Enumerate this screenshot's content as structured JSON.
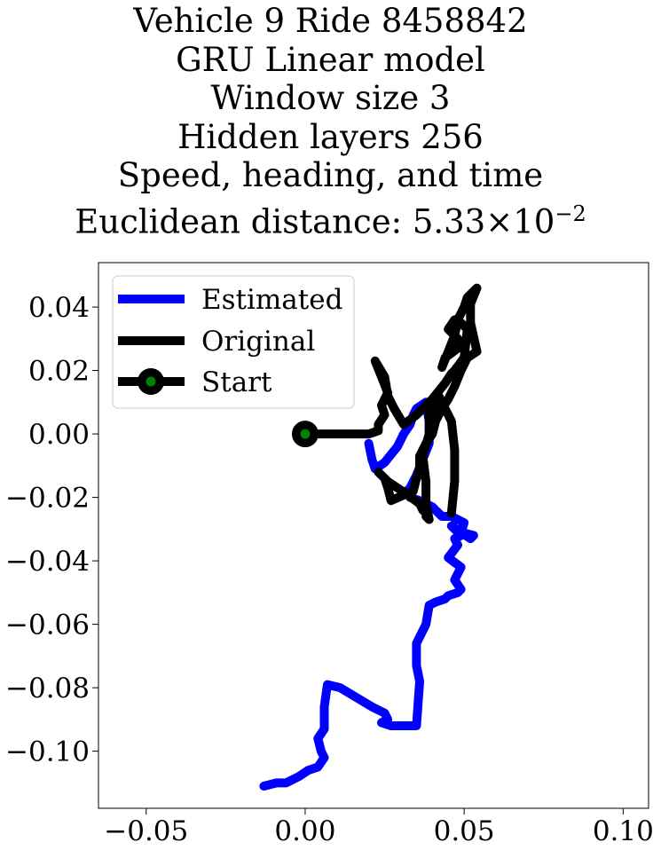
{
  "chart_data": {
    "type": "line",
    "title_lines": [
      "Vehicle 9 Ride 8458842",
      "GRU Linear model",
      "Window size 3",
      "Hidden layers 256",
      "Speed, heading, and time"
    ],
    "title_distance_label": "Euclidean distance: ",
    "title_distance_mantissa": "5.33",
    "title_distance_times": "×",
    "title_distance_base": "10",
    "title_distance_exponent": "−2",
    "xlim": [
      -0.065,
      0.108
    ],
    "ylim": [
      -0.118,
      0.054
    ],
    "xticks": [
      -0.05,
      0.0,
      0.05,
      0.1
    ],
    "xtick_labels": [
      "−0.05",
      "0.00",
      "0.05",
      "0.10"
    ],
    "yticks": [
      0.04,
      0.02,
      0.0,
      -0.02,
      -0.04,
      -0.06,
      -0.08,
      -0.1
    ],
    "ytick_labels": [
      "0.04",
      "0.02",
      "0.00",
      "−0.02",
      "−0.04",
      "−0.06",
      "−0.08",
      "−0.10"
    ],
    "grid": false,
    "legend_position": "upper-left",
    "colors": {
      "estimated": "#0000ff",
      "original": "#000000",
      "start_outer": "#000000",
      "start_inner": "#008000"
    },
    "series": [
      {
        "name": "Estimated",
        "x": [
          -0.013,
          -0.009,
          -0.006,
          -0.002,
          0.001,
          0.004,
          0.006,
          0.005,
          0.004,
          0.006,
          0.006,
          0.007,
          0.011,
          0.016,
          0.021,
          0.025,
          0.026,
          0.024,
          0.027,
          0.035,
          0.036,
          0.035,
          0.035,
          0.038,
          0.039,
          0.041,
          0.044,
          0.045,
          0.048,
          0.049,
          0.047,
          0.049,
          0.045,
          0.048,
          0.047,
          0.049,
          0.046,
          0.052,
          0.053,
          0.049,
          0.05,
          0.046,
          0.043,
          0.042,
          0.041,
          0.04,
          0.038,
          0.036,
          0.033,
          0.032,
          0.033,
          0.035,
          0.037,
          0.039,
          0.039,
          0.038,
          0.035,
          0.034,
          0.033,
          0.031,
          0.029,
          0.025,
          0.022,
          0.021,
          0.02
        ],
        "y": [
          -0.111,
          -0.11,
          -0.11,
          -0.108,
          -0.106,
          -0.105,
          -0.102,
          -0.1,
          -0.096,
          -0.093,
          -0.086,
          -0.079,
          -0.08,
          -0.083,
          -0.086,
          -0.088,
          -0.09,
          -0.091,
          -0.092,
          -0.092,
          -0.078,
          -0.073,
          -0.066,
          -0.06,
          -0.054,
          -0.053,
          -0.052,
          -0.051,
          -0.05,
          -0.049,
          -0.046,
          -0.042,
          -0.039,
          -0.035,
          -0.033,
          -0.032,
          -0.029,
          -0.033,
          -0.032,
          -0.031,
          -0.028,
          -0.026,
          -0.026,
          -0.025,
          -0.024,
          -0.023,
          -0.022,
          -0.021,
          -0.02,
          -0.018,
          -0.017,
          -0.013,
          -0.008,
          -0.003,
          0.004,
          0.01,
          0.008,
          0.006,
          0.003,
          0.0,
          -0.004,
          -0.009,
          -0.011,
          -0.008,
          -0.003
        ]
      },
      {
        "name": "Original",
        "x": [
          0.0,
          0.005,
          0.01,
          0.015,
          0.02,
          0.023,
          0.023,
          0.025,
          0.024,
          0.026,
          0.024,
          0.022,
          0.025,
          0.026,
          0.028,
          0.031,
          0.035,
          0.04,
          0.044,
          0.046,
          0.047,
          0.05,
          0.051,
          0.049,
          0.047,
          0.045,
          0.048,
          0.048,
          0.044,
          0.043,
          0.047,
          0.048,
          0.05,
          0.051,
          0.053,
          0.054,
          0.052,
          0.052,
          0.054,
          0.051,
          0.049,
          0.047,
          0.045,
          0.043,
          0.041,
          0.04,
          0.038,
          0.036,
          0.036,
          0.035,
          0.034,
          0.027,
          0.026,
          0.025,
          0.023,
          0.026,
          0.032,
          0.036,
          0.037,
          0.038,
          0.038,
          0.039,
          0.038,
          0.038,
          0.037,
          0.039,
          0.039,
          0.041,
          0.042,
          0.046,
          0.047,
          0.047,
          0.046
        ],
        "y": [
          0.0,
          0.0,
          0.0,
          0.0,
          0.0,
          0.001,
          0.003,
          0.006,
          0.009,
          0.013,
          0.018,
          0.023,
          0.018,
          0.012,
          0.008,
          0.003,
          0.006,
          0.011,
          0.016,
          0.019,
          0.02,
          0.024,
          0.033,
          0.035,
          0.036,
          0.033,
          0.03,
          0.027,
          0.024,
          0.021,
          0.031,
          0.036,
          0.04,
          0.043,
          0.045,
          0.046,
          0.041,
          0.035,
          0.026,
          0.024,
          0.02,
          0.015,
          0.011,
          0.008,
          0.004,
          0.0,
          -0.003,
          -0.007,
          -0.011,
          -0.014,
          -0.018,
          -0.021,
          -0.017,
          -0.014,
          -0.012,
          -0.015,
          -0.019,
          -0.022,
          -0.024,
          -0.025,
          -0.026,
          -0.027,
          -0.022,
          -0.015,
          -0.007,
          0.0,
          0.006,
          0.009,
          0.012,
          0.004,
          -0.005,
          -0.015,
          -0.025
        ]
      }
    ],
    "legend": [
      {
        "label": "Estimated",
        "style": "line",
        "color": "#0000ff"
      },
      {
        "label": "Original",
        "style": "line",
        "color": "#000000"
      },
      {
        "label": "Start",
        "style": "line-marker",
        "color": "#000000",
        "marker_face": "#008000"
      }
    ],
    "start_point": {
      "x": 0.0,
      "y": 0.0
    }
  }
}
